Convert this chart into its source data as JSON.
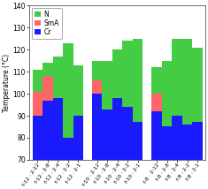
{
  "categories": [
    "f-12 · 2-12",
    "f-12 · 2-8",
    "f-12 · 2-4",
    "f-12 · 2-2",
    "f-12 · 2-1",
    "f-10 · 2-12",
    "f-10 · 2-8",
    "f-10 · 2-4",
    "f-10 · 2-2",
    "f-10 · 2-1",
    "f-8 · 2-12",
    "f-8 · 2-8",
    "f-8 · 2-4",
    "f-8 · 2-2",
    "f-8 · 2-1"
  ],
  "Cr": [
    90,
    97,
    98,
    80,
    90,
    100,
    93,
    98,
    94,
    87,
    92,
    85,
    90,
    86,
    87
  ],
  "SmA": [
    11,
    11,
    0,
    0,
    0,
    6,
    0,
    0,
    0,
    0,
    8,
    0,
    0,
    0,
    0
  ],
  "N": [
    10,
    6,
    19,
    43,
    23,
    9,
    22,
    22,
    30,
    38,
    12,
    30,
    35,
    39,
    34
  ],
  "color_Cr": "#1a1aff",
  "color_SmA": "#ff6666",
  "color_N": "#44cc44",
  "ylim": [
    70,
    140
  ],
  "yticks": [
    70,
    80,
    90,
    100,
    110,
    120,
    130,
    140
  ],
  "ylabel": "Temperature (°C)",
  "legend_labels": [
    "N",
    "SmA",
    "Cr"
  ],
  "bg_color": "#ffffff"
}
